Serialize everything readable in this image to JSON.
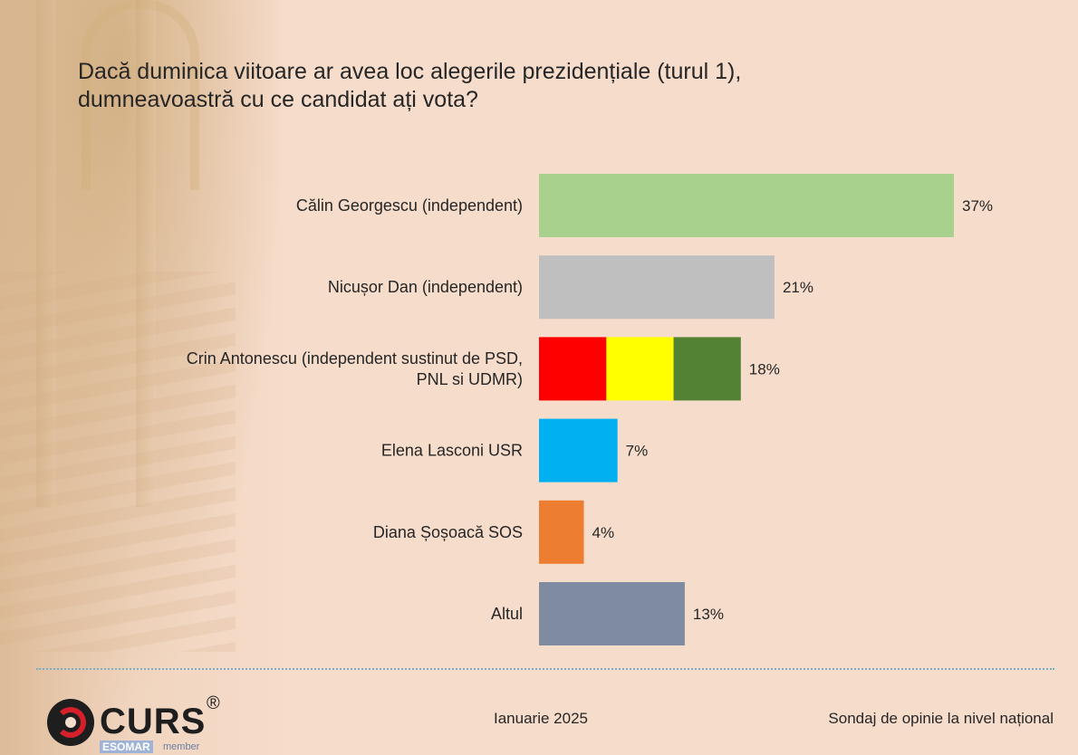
{
  "title_lines": [
    "Dacă duminica viitoare ar avea loc alegerile prezidențiale (turul 1),",
    "dumneavoastră cu ce candidat ați vota?"
  ],
  "chart_data": {
    "type": "bar",
    "orientation": "horizontal",
    "categories": [
      [
        "Călin Georgescu (independent)"
      ],
      [
        "Nicușor Dan (independent)"
      ],
      [
        "Crin Antonescu (independent sustinut de PSD,",
        "PNL si UDMR)"
      ],
      [
        "Elena Lasconi USR"
      ],
      [
        "Diana Șoșoacă SOS"
      ],
      [
        "Altul"
      ]
    ],
    "values": [
      37,
      21,
      18,
      7,
      4,
      13
    ],
    "value_labels": [
      "37%",
      "21%",
      "18%",
      "7%",
      "4%",
      "13%"
    ],
    "bar_colors": [
      [
        "#a9d18e"
      ],
      [
        "#bfbfbf"
      ],
      [
        "#ff0000",
        "#ffff00",
        "#548235"
      ],
      [
        "#00b0f0"
      ],
      [
        "#ed7d31"
      ],
      [
        "#7f8ba0"
      ]
    ],
    "xlim": [
      0,
      37
    ],
    "grid": false,
    "legend": "none"
  },
  "footer": {
    "date": "Ianuarie 2025",
    "survey": "Sondaj de opinie la nivel național",
    "logo_text": "CURS",
    "logo_reg": "®",
    "logo_esomar": "ESOMAR",
    "logo_member": "member"
  },
  "colors": {
    "background": "#f6dccb",
    "text": "#262626",
    "divider": "#7aaec8"
  }
}
